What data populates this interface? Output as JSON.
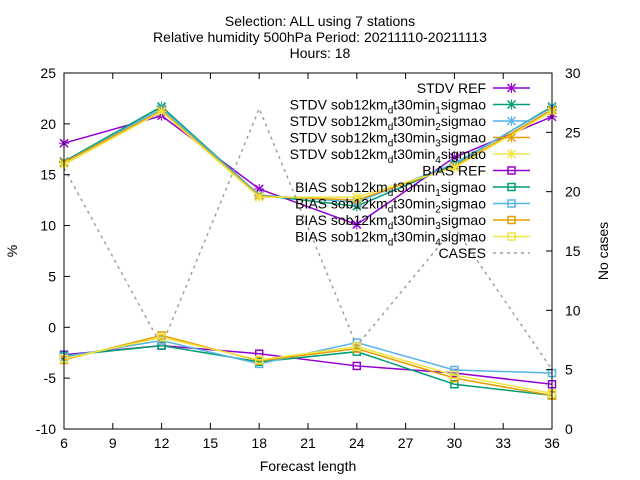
{
  "chart_data": {
    "type": "line",
    "title_lines": [
      "Selection: ALL using     7 stations",
      "Relative humidity 500hPa   Period: 20211110-20211113",
      "Hours: 18"
    ],
    "xlabel": "Forecast length",
    "ylabel": "%",
    "y2label": "No cases",
    "xlim": [
      6,
      36
    ],
    "ylim": [
      -10,
      25
    ],
    "y2lim": [
      0,
      30
    ],
    "xticks": [
      "6",
      "9",
      "12",
      "15",
      "18",
      "21",
      "24",
      "27",
      "30",
      "33",
      "36"
    ],
    "yticks": [
      "-10",
      "-5",
      "0",
      "5",
      "10",
      "15",
      "20",
      "25"
    ],
    "y2ticks": [
      "0",
      "5",
      "10",
      "15",
      "20",
      "25",
      "30"
    ],
    "x": [
      6,
      12,
      18,
      24,
      30,
      36
    ],
    "legend_position": "top-right",
    "series": [
      {
        "name": "STDV REF",
        "label_base": "STDV REF",
        "label_sub": "",
        "label_mid": "",
        "label_sub2": "",
        "label_tail": "",
        "color": "#9400d3",
        "marker": "x",
        "axis": "y",
        "values": [
          18.1,
          20.8,
          13.6,
          10.1,
          16.7,
          20.7
        ]
      },
      {
        "name": "STDV sob12km_d t30min_1 sigmao",
        "label_base": "STDV sob12km",
        "label_sub": "d",
        "label_mid": "t30min",
        "label_sub2": "1",
        "label_tail": "sigmao",
        "color": "#009e73",
        "marker": "x",
        "axis": "y",
        "values": [
          16.3,
          21.7,
          13.0,
          11.9,
          16.0,
          21.7
        ]
      },
      {
        "name": "STDV sob12km_d t30min_2 sigmao",
        "label_base": "STDV sob12km",
        "label_sub": "d",
        "label_mid": "t30min",
        "label_sub2": "2",
        "label_tail": "sigmao",
        "color": "#56b4e9",
        "marker": "x",
        "axis": "y",
        "values": [
          16.2,
          21.5,
          13.0,
          12.3,
          16.1,
          21.6
        ]
      },
      {
        "name": "STDV sob12km_d t30min_3 sigmao",
        "label_base": "STDV sob12km",
        "label_sub": "d",
        "label_mid": "t30min",
        "label_sub2": "3",
        "label_tail": "sigmao",
        "color": "#e69f00",
        "marker": "x",
        "axis": "y",
        "values": [
          16.2,
          21.3,
          12.9,
          12.5,
          15.8,
          21.4
        ]
      },
      {
        "name": "STDV sob12km_d t30min_4 sigmao",
        "label_base": "STDV sob12km",
        "label_sub": "d",
        "label_mid": "t30min",
        "label_sub2": "4",
        "label_tail": "sigmao",
        "color": "#f0e442",
        "marker": "x",
        "axis": "y",
        "values": [
          16.0,
          21.2,
          12.8,
          12.8,
          15.7,
          21.2
        ]
      },
      {
        "name": "BIAS REF",
        "label_base": "BIAS REF",
        "label_sub": "",
        "label_mid": "",
        "label_sub2": "",
        "label_tail": "",
        "color": "#9400d3",
        "marker": "square",
        "axis": "y",
        "values": [
          -2.7,
          -1.8,
          -2.6,
          -3.8,
          -4.5,
          -5.6
        ]
      },
      {
        "name": "BIAS sob12km_d t30min_1 sigmao",
        "label_base": "BIAS sob12km",
        "label_sub": "d",
        "label_mid": "t30min",
        "label_sub2": "1",
        "label_tail": "sigmao",
        "color": "#009e73",
        "marker": "square",
        "axis": "y",
        "values": [
          -2.8,
          -1.8,
          -3.4,
          -2.4,
          -5.6,
          -6.7
        ]
      },
      {
        "name": "BIAS sob12km_d t30min_2 sigmao",
        "label_base": "BIAS sob12km",
        "label_sub": "d",
        "label_mid": "t30min",
        "label_sub2": "2",
        "label_tail": "sigmao",
        "color": "#56b4e9",
        "marker": "square",
        "axis": "y",
        "values": [
          -2.9,
          -1.3,
          -3.6,
          -1.5,
          -4.2,
          -4.5
        ]
      },
      {
        "name": "BIAS sob12km_d t30min_3 sigmao",
        "label_base": "BIAS sob12km",
        "label_sub": "d",
        "label_mid": "t30min",
        "label_sub2": "3",
        "label_tail": "sigmao",
        "color": "#e69f00",
        "marker": "square",
        "axis": "y",
        "values": [
          -3.2,
          -0.8,
          -3.3,
          -2.1,
          -5.0,
          -6.7
        ]
      },
      {
        "name": "BIAS sob12km_d t30min_4 sigmao",
        "label_base": "BIAS sob12km",
        "label_sub": "d",
        "label_mid": "t30min",
        "label_sub2": "4",
        "label_tail": "sigmao",
        "color": "#f0e442",
        "marker": "square",
        "axis": "y",
        "values": [
          -3.1,
          -1.0,
          -3.2,
          -1.9,
          -4.7,
          -6.5
        ]
      },
      {
        "name": "CASES",
        "label_base": "CASES",
        "label_sub": "",
        "label_mid": "",
        "label_sub2": "",
        "label_tail": "",
        "color": "#a0a0a0",
        "marker": "none",
        "dashed": true,
        "axis": "y2",
        "values": [
          22,
          7,
          27,
          7,
          17,
          5
        ]
      }
    ]
  }
}
